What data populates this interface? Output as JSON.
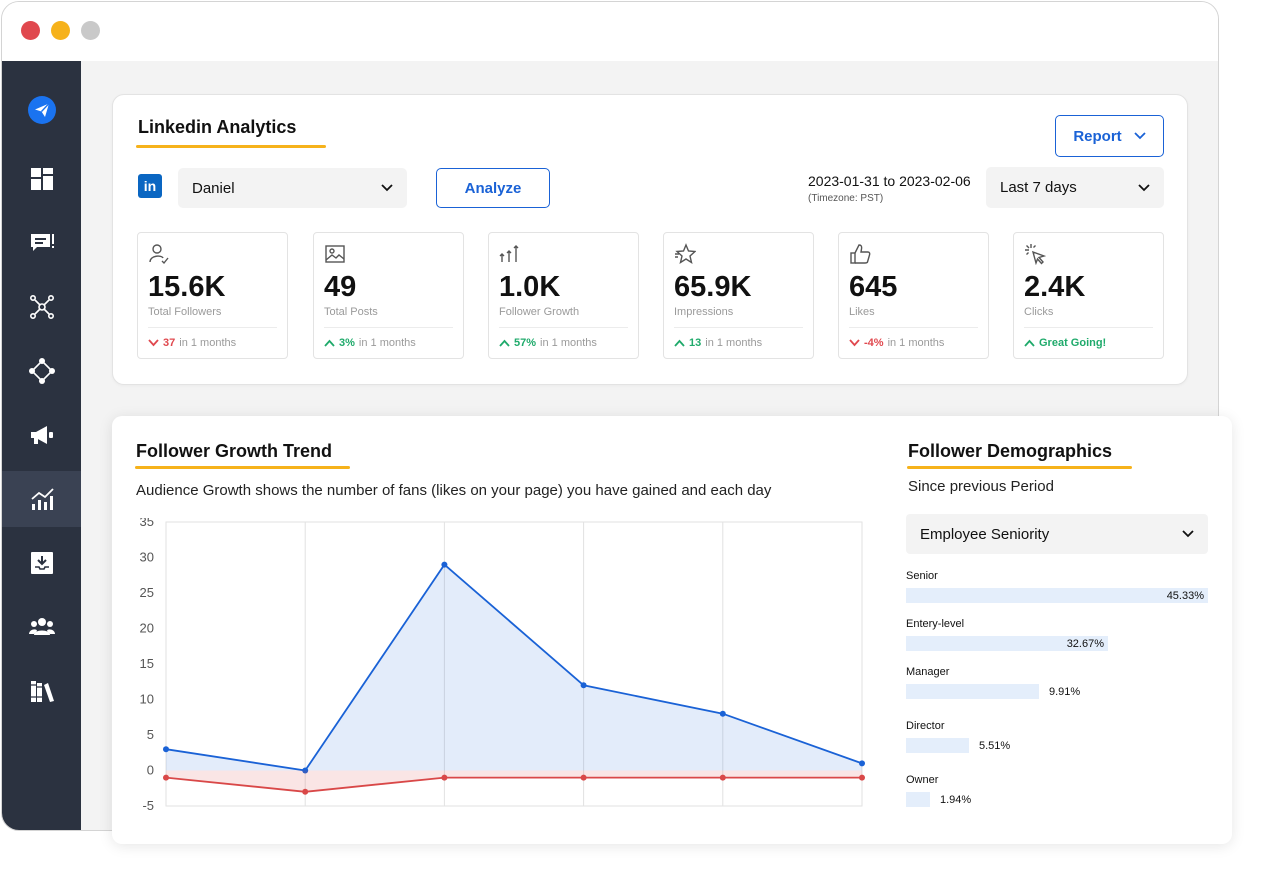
{
  "window": {
    "controls": [
      "close",
      "minimize",
      "maximize"
    ]
  },
  "sidebar": {
    "items": [
      {
        "name": "logo",
        "icon": "paper-plane-icon"
      },
      {
        "name": "dashboard",
        "icon": "grid-icon"
      },
      {
        "name": "messages",
        "icon": "chat-icon"
      },
      {
        "name": "network",
        "icon": "network-icon"
      },
      {
        "name": "connections",
        "icon": "nodes-icon"
      },
      {
        "name": "campaigns",
        "icon": "megaphone-icon"
      },
      {
        "name": "analytics",
        "icon": "analytics-icon",
        "active": true
      },
      {
        "name": "downloads",
        "icon": "download-icon"
      },
      {
        "name": "team",
        "icon": "team-icon"
      },
      {
        "name": "library",
        "icon": "library-icon"
      }
    ]
  },
  "header": {
    "title": "Linkedin Analytics",
    "report_label": "Report",
    "account": "Daniel",
    "analyze_label": "Analyze",
    "date_range": "2023-01-31 to 2023-02-06",
    "timezone": "(Timezone: PST)",
    "period": "Last 7 days"
  },
  "stats": [
    {
      "value": "15.6K",
      "label": "Total Followers",
      "change": "37",
      "direction": "down",
      "period": "in 1 months",
      "icon": "follower-icon"
    },
    {
      "value": "49",
      "label": "Total Posts",
      "change": "3%",
      "direction": "up",
      "period": "in 1 months",
      "icon": "image-icon"
    },
    {
      "value": "1.0K",
      "label": "Follower Growth",
      "change": "57%",
      "direction": "up",
      "period": "in 1 months",
      "icon": "growth-icon"
    },
    {
      "value": "65.9K",
      "label": "Impressions",
      "change": "13",
      "direction": "up",
      "period": "in 1 months",
      "icon": "star-icon"
    },
    {
      "value": "645",
      "label": "Likes",
      "change": "-4%",
      "direction": "down",
      "period": "in 1 months",
      "icon": "thumbs-up-icon"
    },
    {
      "value": "2.4K",
      "label": "Clicks",
      "change": "Great Going!",
      "direction": "up",
      "period": "",
      "icon": "cursor-click-icon"
    }
  ],
  "growth": {
    "title": "Follower Growth Trend",
    "description": "Audience Growth shows the number of fans (likes on your page) you have gained and each day"
  },
  "chart_data": {
    "type": "area",
    "x": [
      1,
      2,
      3,
      4,
      5,
      6
    ],
    "series": [
      {
        "values": [
          3,
          0,
          29,
          12,
          8,
          1
        ],
        "color": "#1a62d6"
      },
      {
        "values": [
          -1,
          -3,
          -1,
          -1,
          -1,
          -1
        ],
        "color": "#d94848"
      }
    ],
    "ylim": [
      -5,
      35
    ],
    "yticks": [
      35,
      30,
      25,
      20,
      15,
      10,
      5,
      0,
      -5
    ],
    "grid": true,
    "title": "",
    "xlabel": "",
    "ylabel": ""
  },
  "demographics": {
    "title": "Follower Demographics",
    "subtitle": "Since previous Period",
    "filter": "Employee Seniority",
    "items": [
      {
        "name": "Senior",
        "value": "45.33%",
        "fraction": 1.0
      },
      {
        "name": "Entery-level",
        "value": "32.67%",
        "fraction": 0.67
      },
      {
        "name": "Manager",
        "value": "9.91%",
        "fraction": 0.44
      },
      {
        "name": "Director",
        "value": "5.51%",
        "fraction": 0.21
      },
      {
        "name": "Owner",
        "value": "1.94%",
        "fraction": 0.08
      }
    ]
  }
}
